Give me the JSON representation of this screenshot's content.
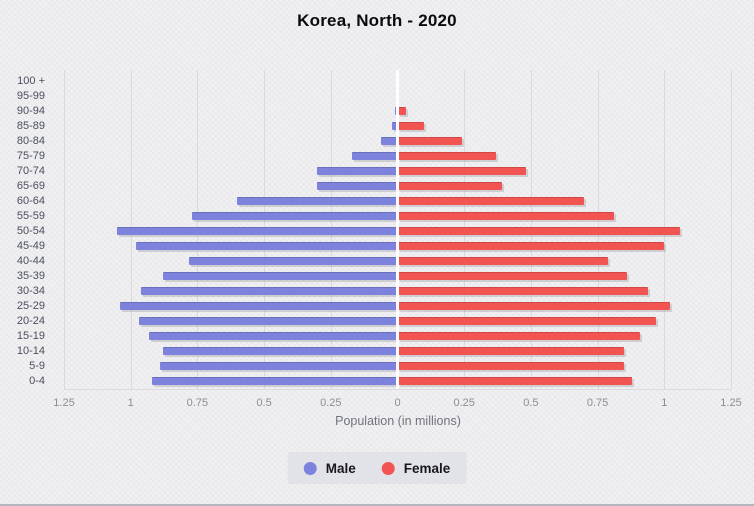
{
  "title": "Korea, North - 2020",
  "chart_data": {
    "type": "bar",
    "subtype": "population-pyramid",
    "title": "Korea, North - 2020",
    "xlabel": "Population (in millions)",
    "xlim": [
      -1.25,
      1.25
    ],
    "tick_step": 0.25,
    "x_ticks": [
      "1.25",
      "1",
      "0.75",
      "0.5",
      "0.25",
      "0",
      "0.25",
      "0.5",
      "0.75",
      "1",
      "1.25"
    ],
    "grid": "vertical",
    "legend_position": "bottom",
    "categories": [
      "100 +",
      "95-99",
      "90-94",
      "85-89",
      "80-84",
      "75-79",
      "70-74",
      "65-69",
      "60-64",
      "55-59",
      "50-54",
      "45-49",
      "40-44",
      "35-39",
      "30-34",
      "25-29",
      "20-24",
      "15-19",
      "10-14",
      "5-9",
      "0-4"
    ],
    "series": [
      {
        "name": "Male",
        "side": "left",
        "color": "#7d83dc",
        "values": [
          0,
          0,
          0.01,
          0.02,
          0.06,
          0.17,
          0.3,
          0.3,
          0.6,
          0.77,
          1.05,
          0.98,
          0.78,
          0.88,
          0.96,
          1.04,
          0.97,
          0.93,
          0.88,
          0.89,
          0.92
        ]
      },
      {
        "name": "Female",
        "side": "right",
        "color": "#f15451",
        "values": [
          0,
          0,
          0.03,
          0.1,
          0.24,
          0.37,
          0.48,
          0.39,
          0.7,
          0.81,
          1.06,
          1.0,
          0.79,
          0.86,
          0.94,
          1.02,
          0.97,
          0.91,
          0.85,
          0.85,
          0.88
        ]
      }
    ]
  },
  "colors": {
    "background": "#f0f0f2",
    "male": "#7d83dc",
    "female": "#f15451",
    "gridline": "#d9dadd",
    "center_line": "#ffffff",
    "legend_background": "#e2e3e9",
    "bottom_border": "#b2b5bf"
  }
}
